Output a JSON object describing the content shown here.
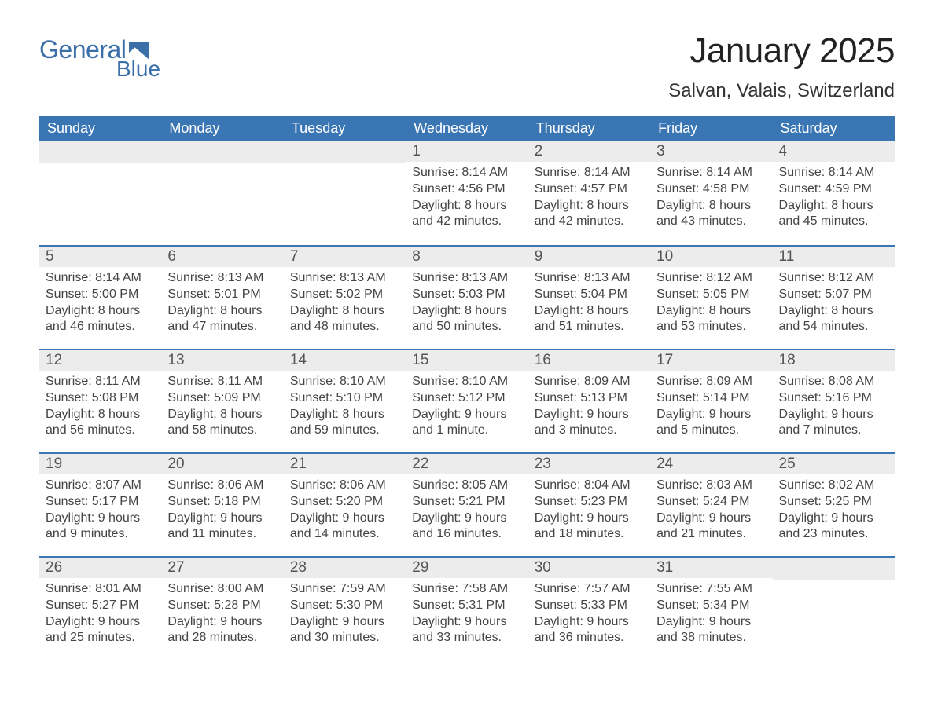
{
  "logo": {
    "text1": "General",
    "text2": "Blue"
  },
  "header": {
    "month_title": "January 2025",
    "location": "Salvan, Valais, Switzerland"
  },
  "colors": {
    "brand_blue": "#3b76b4",
    "daynum_bg": "#ececec",
    "text": "#333333",
    "bg": "#ffffff"
  },
  "weekdays": [
    "Sunday",
    "Monday",
    "Tuesday",
    "Wednesday",
    "Thursday",
    "Friday",
    "Saturday"
  ],
  "weeks": [
    [
      null,
      null,
      null,
      {
        "num": "1",
        "sunrise": "Sunrise: 8:14 AM",
        "sunset": "Sunset: 4:56 PM",
        "daylight": "Daylight: 8 hours and 42 minutes."
      },
      {
        "num": "2",
        "sunrise": "Sunrise: 8:14 AM",
        "sunset": "Sunset: 4:57 PM",
        "daylight": "Daylight: 8 hours and 42 minutes."
      },
      {
        "num": "3",
        "sunrise": "Sunrise: 8:14 AM",
        "sunset": "Sunset: 4:58 PM",
        "daylight": "Daylight: 8 hours and 43 minutes."
      },
      {
        "num": "4",
        "sunrise": "Sunrise: 8:14 AM",
        "sunset": "Sunset: 4:59 PM",
        "daylight": "Daylight: 8 hours and 45 minutes."
      }
    ],
    [
      {
        "num": "5",
        "sunrise": "Sunrise: 8:14 AM",
        "sunset": "Sunset: 5:00 PM",
        "daylight": "Daylight: 8 hours and 46 minutes."
      },
      {
        "num": "6",
        "sunrise": "Sunrise: 8:13 AM",
        "sunset": "Sunset: 5:01 PM",
        "daylight": "Daylight: 8 hours and 47 minutes."
      },
      {
        "num": "7",
        "sunrise": "Sunrise: 8:13 AM",
        "sunset": "Sunset: 5:02 PM",
        "daylight": "Daylight: 8 hours and 48 minutes."
      },
      {
        "num": "8",
        "sunrise": "Sunrise: 8:13 AM",
        "sunset": "Sunset: 5:03 PM",
        "daylight": "Daylight: 8 hours and 50 minutes."
      },
      {
        "num": "9",
        "sunrise": "Sunrise: 8:13 AM",
        "sunset": "Sunset: 5:04 PM",
        "daylight": "Daylight: 8 hours and 51 minutes."
      },
      {
        "num": "10",
        "sunrise": "Sunrise: 8:12 AM",
        "sunset": "Sunset: 5:05 PM",
        "daylight": "Daylight: 8 hours and 53 minutes."
      },
      {
        "num": "11",
        "sunrise": "Sunrise: 8:12 AM",
        "sunset": "Sunset: 5:07 PM",
        "daylight": "Daylight: 8 hours and 54 minutes."
      }
    ],
    [
      {
        "num": "12",
        "sunrise": "Sunrise: 8:11 AM",
        "sunset": "Sunset: 5:08 PM",
        "daylight": "Daylight: 8 hours and 56 minutes."
      },
      {
        "num": "13",
        "sunrise": "Sunrise: 8:11 AM",
        "sunset": "Sunset: 5:09 PM",
        "daylight": "Daylight: 8 hours and 58 minutes."
      },
      {
        "num": "14",
        "sunrise": "Sunrise: 8:10 AM",
        "sunset": "Sunset: 5:10 PM",
        "daylight": "Daylight: 8 hours and 59 minutes."
      },
      {
        "num": "15",
        "sunrise": "Sunrise: 8:10 AM",
        "sunset": "Sunset: 5:12 PM",
        "daylight": "Daylight: 9 hours and 1 minute."
      },
      {
        "num": "16",
        "sunrise": "Sunrise: 8:09 AM",
        "sunset": "Sunset: 5:13 PM",
        "daylight": "Daylight: 9 hours and 3 minutes."
      },
      {
        "num": "17",
        "sunrise": "Sunrise: 8:09 AM",
        "sunset": "Sunset: 5:14 PM",
        "daylight": "Daylight: 9 hours and 5 minutes."
      },
      {
        "num": "18",
        "sunrise": "Sunrise: 8:08 AM",
        "sunset": "Sunset: 5:16 PM",
        "daylight": "Daylight: 9 hours and 7 minutes."
      }
    ],
    [
      {
        "num": "19",
        "sunrise": "Sunrise: 8:07 AM",
        "sunset": "Sunset: 5:17 PM",
        "daylight": "Daylight: 9 hours and 9 minutes."
      },
      {
        "num": "20",
        "sunrise": "Sunrise: 8:06 AM",
        "sunset": "Sunset: 5:18 PM",
        "daylight": "Daylight: 9 hours and 11 minutes."
      },
      {
        "num": "21",
        "sunrise": "Sunrise: 8:06 AM",
        "sunset": "Sunset: 5:20 PM",
        "daylight": "Daylight: 9 hours and 14 minutes."
      },
      {
        "num": "22",
        "sunrise": "Sunrise: 8:05 AM",
        "sunset": "Sunset: 5:21 PM",
        "daylight": "Daylight: 9 hours and 16 minutes."
      },
      {
        "num": "23",
        "sunrise": "Sunrise: 8:04 AM",
        "sunset": "Sunset: 5:23 PM",
        "daylight": "Daylight: 9 hours and 18 minutes."
      },
      {
        "num": "24",
        "sunrise": "Sunrise: 8:03 AM",
        "sunset": "Sunset: 5:24 PM",
        "daylight": "Daylight: 9 hours and 21 minutes."
      },
      {
        "num": "25",
        "sunrise": "Sunrise: 8:02 AM",
        "sunset": "Sunset: 5:25 PM",
        "daylight": "Daylight: 9 hours and 23 minutes."
      }
    ],
    [
      {
        "num": "26",
        "sunrise": "Sunrise: 8:01 AM",
        "sunset": "Sunset: 5:27 PM",
        "daylight": "Daylight: 9 hours and 25 minutes."
      },
      {
        "num": "27",
        "sunrise": "Sunrise: 8:00 AM",
        "sunset": "Sunset: 5:28 PM",
        "daylight": "Daylight: 9 hours and 28 minutes."
      },
      {
        "num": "28",
        "sunrise": "Sunrise: 7:59 AM",
        "sunset": "Sunset: 5:30 PM",
        "daylight": "Daylight: 9 hours and 30 minutes."
      },
      {
        "num": "29",
        "sunrise": "Sunrise: 7:58 AM",
        "sunset": "Sunset: 5:31 PM",
        "daylight": "Daylight: 9 hours and 33 minutes."
      },
      {
        "num": "30",
        "sunrise": "Sunrise: 7:57 AM",
        "sunset": "Sunset: 5:33 PM",
        "daylight": "Daylight: 9 hours and 36 minutes."
      },
      {
        "num": "31",
        "sunrise": "Sunrise: 7:55 AM",
        "sunset": "Sunset: 5:34 PM",
        "daylight": "Daylight: 9 hours and 38 minutes."
      },
      null
    ]
  ]
}
